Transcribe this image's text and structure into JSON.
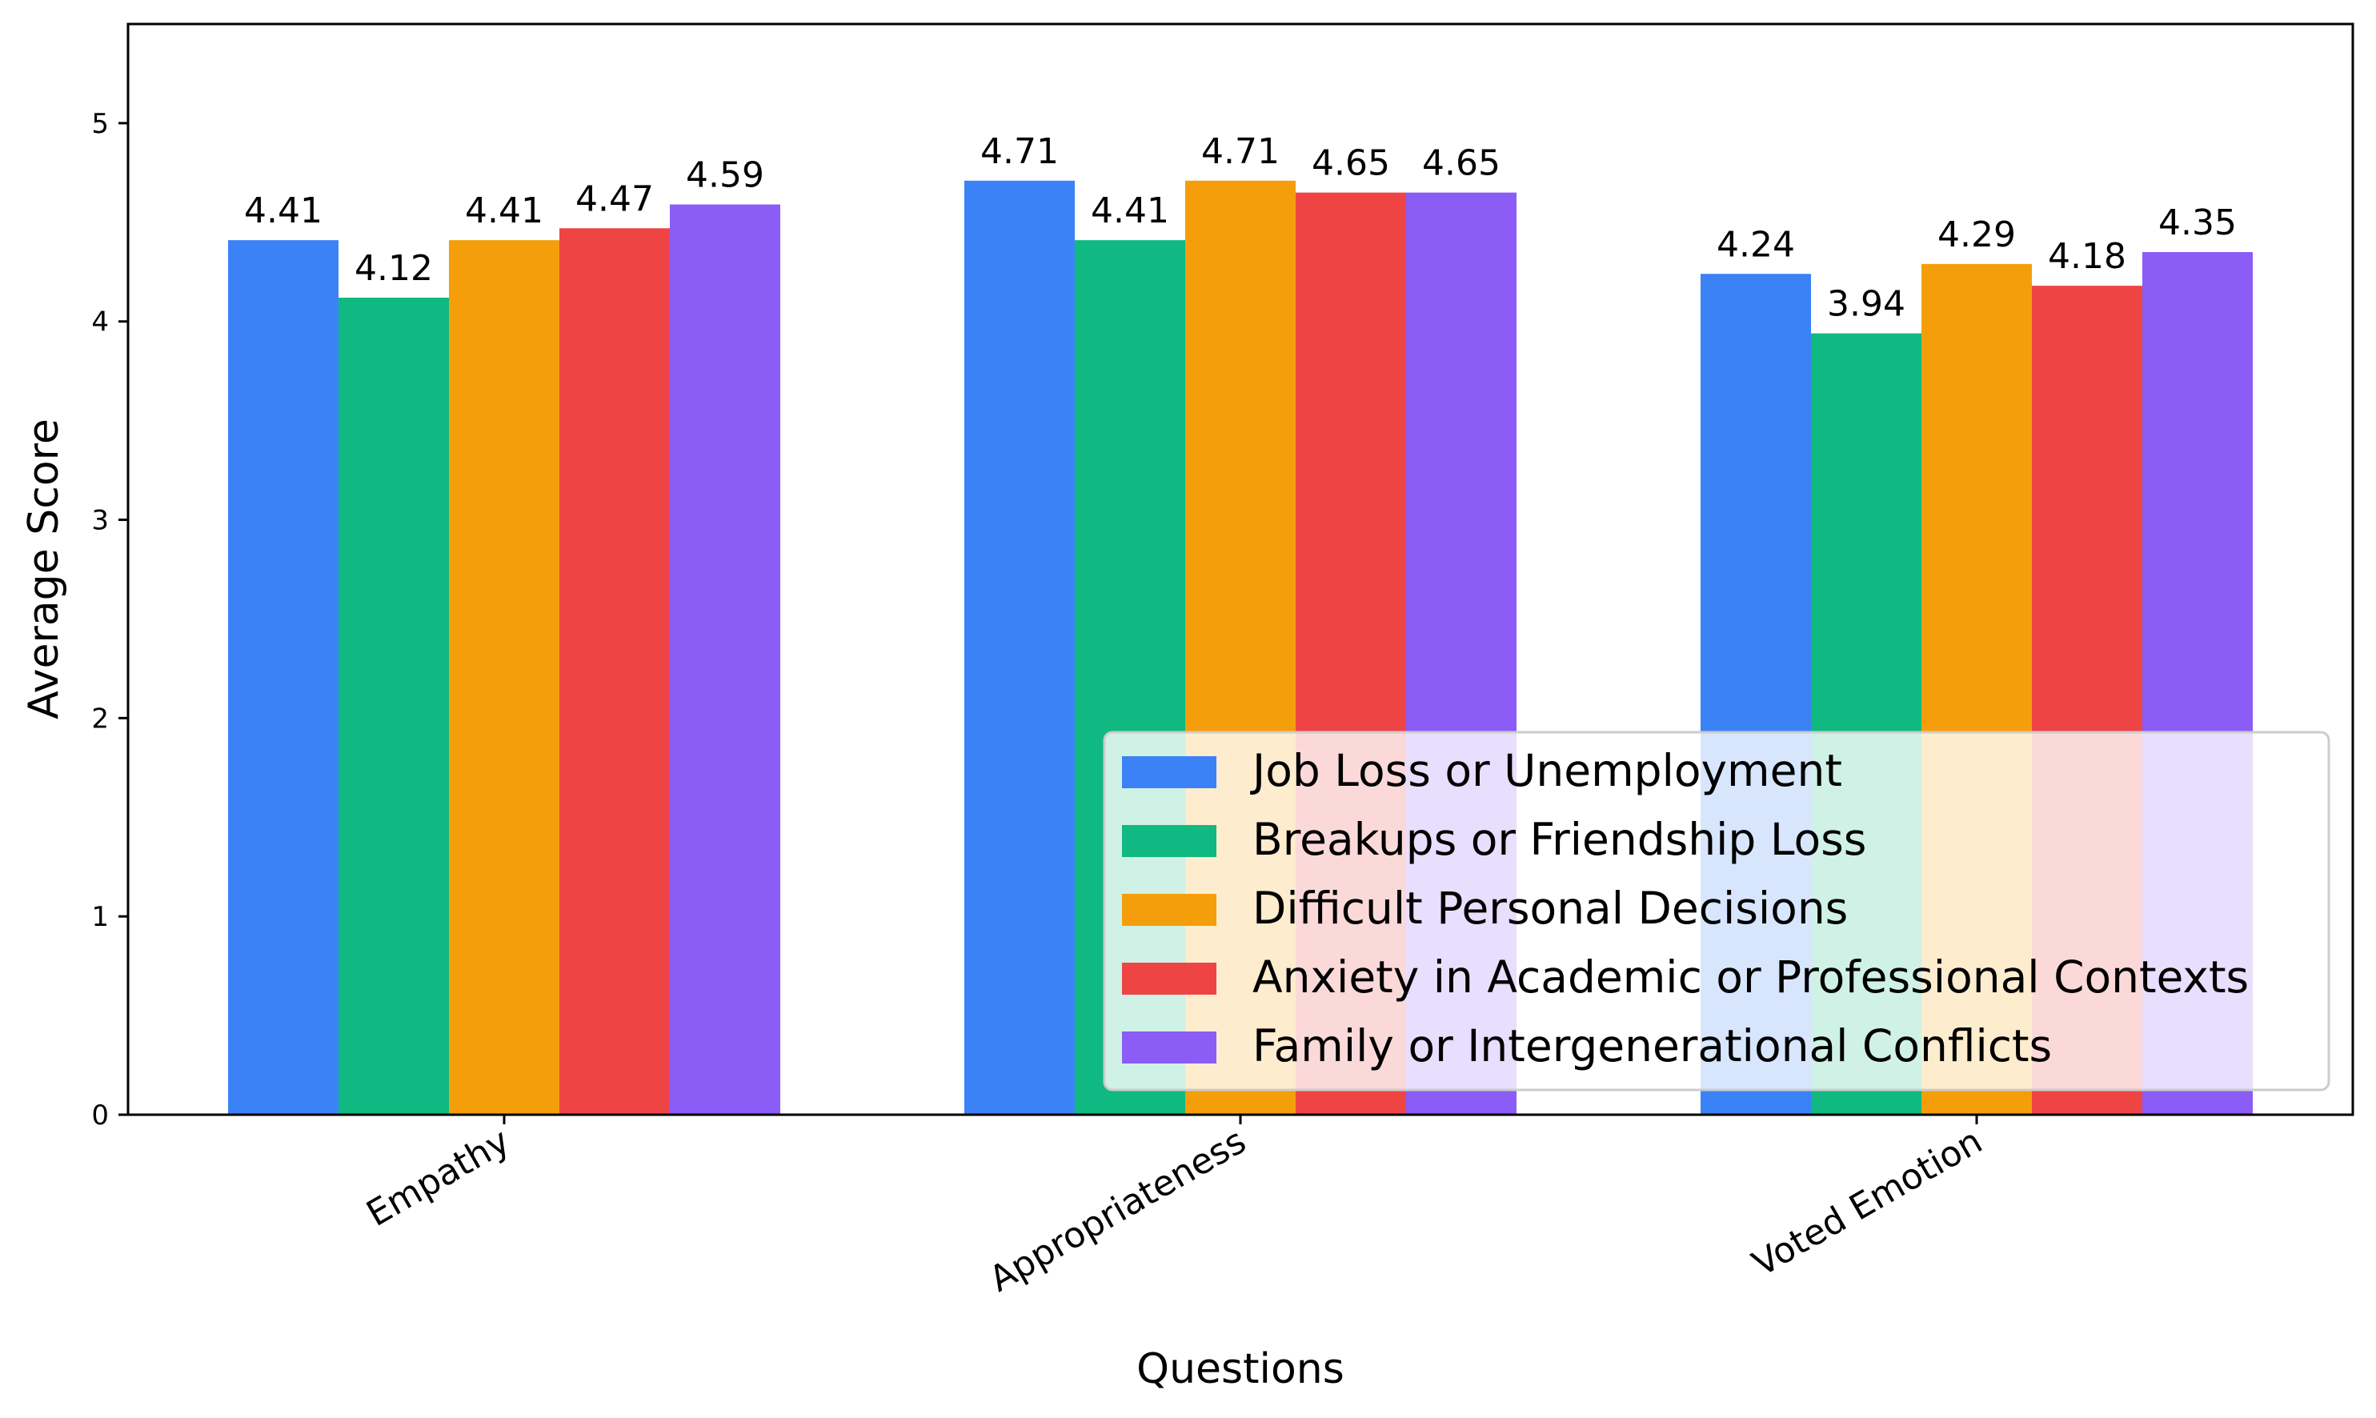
{
  "chart_data": {
    "type": "bar",
    "title": "",
    "xlabel": "Questions",
    "ylabel": "Average Score",
    "ylim": [
      0,
      5.5
    ],
    "yticks": [
      "0",
      "1",
      "2",
      "3",
      "4",
      "5"
    ],
    "categories": [
      "Empathy",
      "Appropriateness",
      "Voted Emotion"
    ],
    "series": [
      {
        "name": "Job Loss or Unemployment",
        "color": "#3b82f6",
        "values": [
          4.41,
          4.71,
          4.24
        ],
        "labels": [
          "4.41",
          "4.71",
          "4.24"
        ]
      },
      {
        "name": "Breakups or Friendship Loss",
        "color": "#10b981",
        "values": [
          4.12,
          4.41,
          3.94
        ],
        "labels": [
          "4.12",
          "4.41",
          "3.94"
        ]
      },
      {
        "name": "Difficult Personal Decisions",
        "color": "#f59e0b",
        "values": [
          4.41,
          4.71,
          4.29
        ],
        "labels": [
          "4.41",
          "4.71",
          "4.29"
        ]
      },
      {
        "name": "Anxiety in Academic or Professional Contexts",
        "color": "#ef4444",
        "values": [
          4.47,
          4.65,
          4.18
        ],
        "labels": [
          "4.47",
          "4.65",
          "4.18"
        ]
      },
      {
        "name": "Family or Intergenerational Conflicts",
        "color": "#8b5cf6",
        "values": [
          4.59,
          4.65,
          4.35
        ],
        "labels": [
          "4.59",
          "4.65",
          "4.35"
        ]
      }
    ],
    "legend_position": "lower-right",
    "grid": false
  }
}
